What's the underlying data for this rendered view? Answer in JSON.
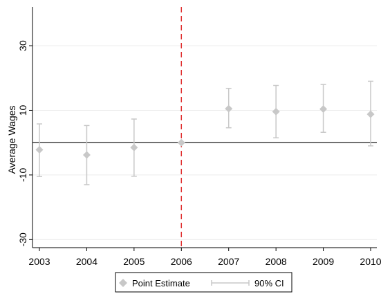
{
  "chart_data": {
    "type": "scatter",
    "x": [
      "2003",
      "2004",
      "2005",
      "2006",
      "2007",
      "2008",
      "2009",
      "2010"
    ],
    "point_estimate": [
      -2.2,
      -3.8,
      -1.5,
      0.0,
      10.5,
      9.6,
      10.4,
      8.8
    ],
    "ci_lower": [
      -10.5,
      -13.0,
      -10.4,
      0.0,
      4.6,
      1.5,
      3.2,
      -1.0
    ],
    "ci_upper": [
      5.8,
      5.3,
      7.3,
      0.0,
      16.8,
      17.7,
      18.0,
      19.0
    ],
    "xlabel": "",
    "ylabel": "Average Wages",
    "yticks": [
      -30,
      -10,
      10,
      30
    ],
    "ylim": [
      -32.5,
      42
    ],
    "reference_line_y": 0,
    "event_line_x": "2006",
    "grid": true,
    "legend": {
      "placement": "bottom",
      "entries": [
        "Point Estimate",
        "90% CI"
      ]
    },
    "colors": {
      "marker": "#c8c8c8",
      "ci": "#c8c8c8",
      "reference_line": "#000000",
      "event_line": "#e03030",
      "grid": "#ececec"
    }
  }
}
